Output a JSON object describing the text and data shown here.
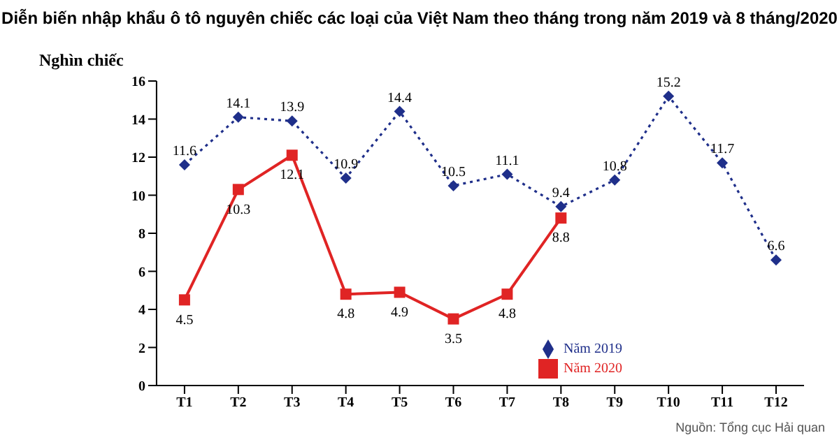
{
  "chart_data": {
    "type": "line",
    "title": "Diễn biến nhập khẩu ô tô nguyên chiếc các loại của Việt Nam theo tháng trong năm 2019 và 8 tháng/2020",
    "ylabel": "Nghìn chiếc",
    "annotations": [
      "Nguồn: Tổng cục Hải quan"
    ],
    "categories": [
      "T1",
      "T2",
      "T3",
      "T4",
      "T5",
      "T6",
      "T7",
      "T8",
      "T9",
      "T10",
      "T11",
      "T12"
    ],
    "series": [
      {
        "name": "Năm 2019",
        "color": "#1f2f8a",
        "marker": "diamond",
        "line_style": "dotted",
        "values": [
          11.6,
          14.1,
          13.9,
          10.9,
          14.4,
          10.5,
          11.1,
          9.4,
          10.8,
          15.2,
          11.7,
          6.6
        ]
      },
      {
        "name": "Năm 2020",
        "color": "#e02424",
        "marker": "square",
        "line_style": "solid",
        "values": [
          4.5,
          10.3,
          12.1,
          4.8,
          4.9,
          3.5,
          4.8,
          8.8,
          null,
          null,
          null,
          null
        ]
      }
    ],
    "ylim": [
      0,
      16
    ],
    "yticks": [
      0,
      2,
      4,
      6,
      8,
      10,
      12,
      14,
      16
    ],
    "grid": false,
    "legend": "right",
    "data_labels": true
  }
}
